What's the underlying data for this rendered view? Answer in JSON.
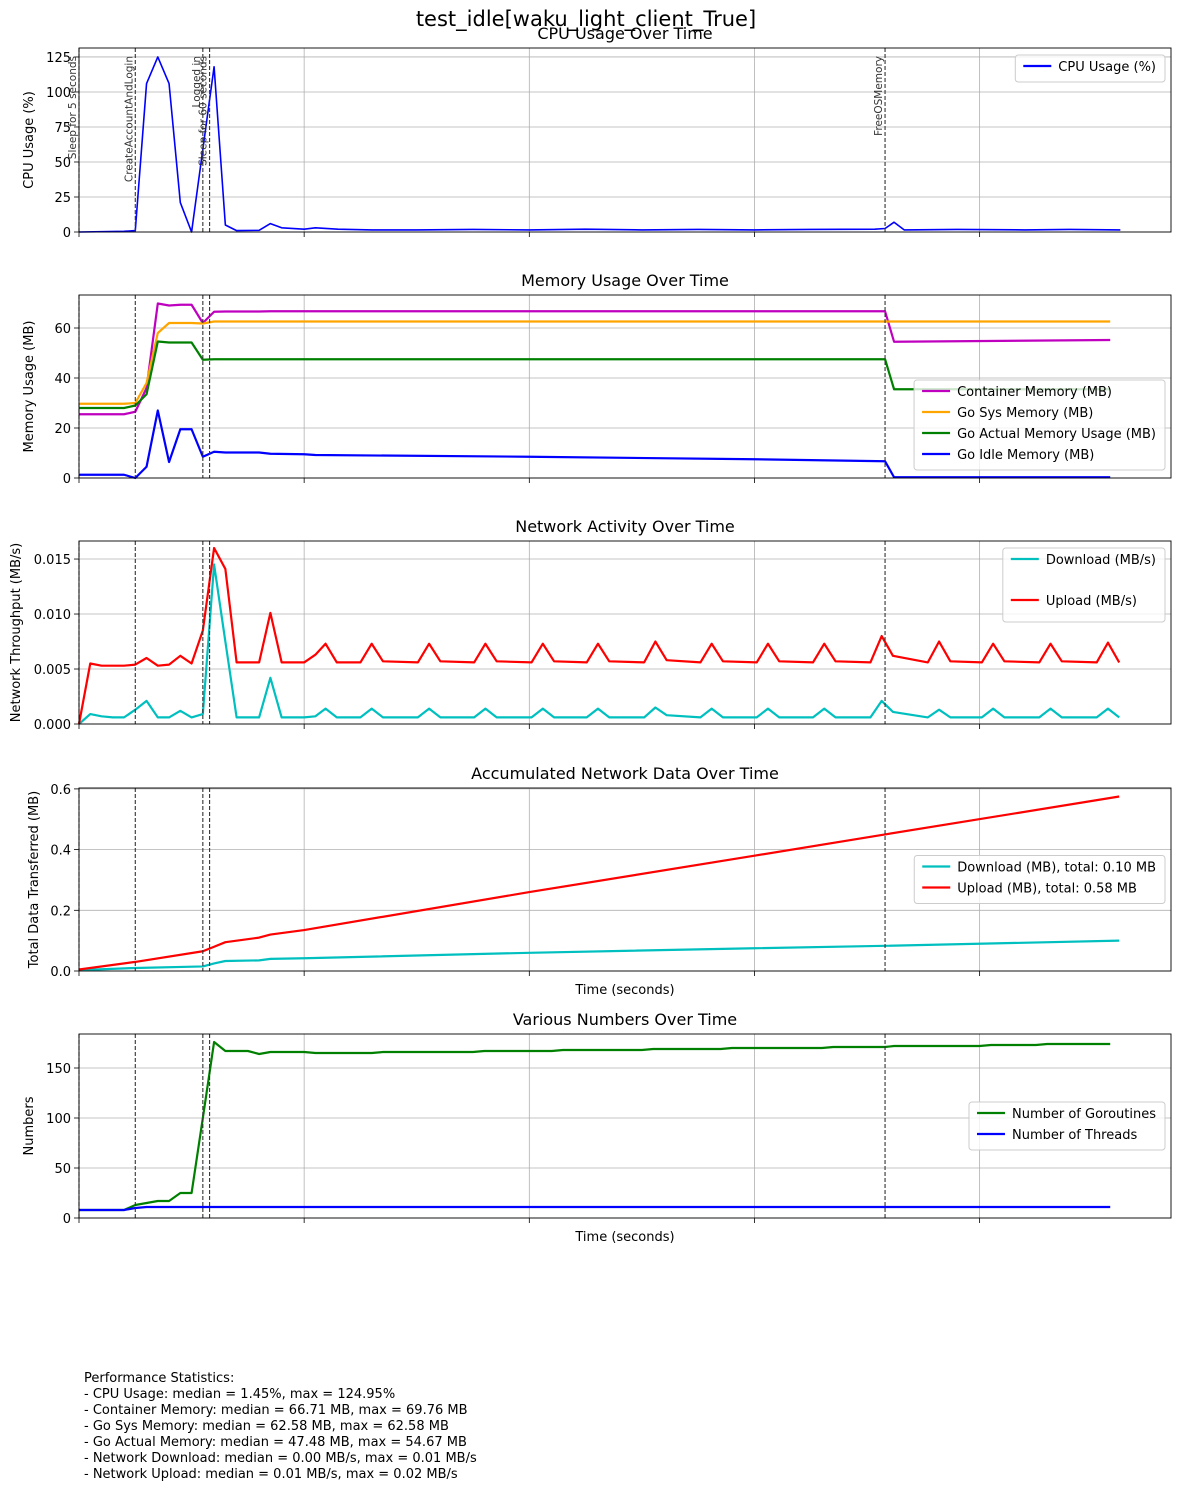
{
  "title": "test_idle[waku_light_client_True]",
  "events": [
    {
      "x": 0,
      "label": "Sleep for 5 seconds"
    },
    {
      "x": 5,
      "label": "CreateAccountAndLogin"
    },
    {
      "x": 11,
      "label": "Logged in"
    },
    {
      "x": 11.6,
      "label": "Sleep for 60 seconds"
    },
    {
      "x": 71.6,
      "label": "FreeOSMemory"
    }
  ],
  "chart_data": [
    {
      "type": "line",
      "title": "CPU Usage Over Time",
      "ylabel": "CPU Usage (%)",
      "xlim": [
        0,
        97
      ],
      "xticks": [
        0,
        20,
        40,
        60,
        80
      ],
      "ylim": [
        0,
        131.4
      ],
      "yticks": [
        0,
        25,
        50,
        75,
        100,
        125
      ],
      "grid": true,
      "legend": "upper right",
      "x": [
        0,
        4,
        5,
        6,
        7,
        8,
        9,
        10,
        12,
        13,
        14,
        16,
        17,
        18,
        20,
        21,
        23,
        26,
        30,
        35,
        40,
        45,
        50,
        55,
        60,
        65,
        70.7,
        71.6,
        72.4,
        73.3,
        78,
        84,
        88,
        92.5
      ],
      "series": [
        {
          "name": "CPU Usage (%)",
          "color": "#0000ff",
          "values": [
            0,
            0.5,
            1,
            106,
            125,
            106,
            21,
            0,
            118,
            5,
            1,
            1.2,
            6,
            3,
            2,
            3,
            2,
            1.5,
            1.5,
            1.8,
            1.5,
            2,
            1.5,
            1.8,
            1.5,
            1.8,
            2,
            2.5,
            7,
            1.5,
            1.8,
            1.5,
            1.8,
            1.5
          ]
        }
      ]
    },
    {
      "type": "line",
      "title": "Memory Usage Over Time",
      "ylabel": "Memory Usage (MB)",
      "xlim": [
        0,
        97
      ],
      "xticks": [
        0,
        20,
        40,
        60,
        80
      ],
      "ylim": [
        0,
        73.2
      ],
      "yticks": [
        0,
        20,
        40,
        60
      ],
      "grid": true,
      "legend": "lower right",
      "x": [
        0,
        4,
        5,
        6,
        7,
        8,
        9,
        10,
        11,
        12,
        13,
        16,
        17,
        20,
        21,
        40,
        60,
        71.6,
        72.4,
        91.6
      ],
      "series": [
        {
          "name": "Container Memory (MB)",
          "color": "#bf00bf",
          "values": [
            25.5,
            25.5,
            26.5,
            36,
            69.8,
            69,
            69.3,
            69.3,
            62,
            66.5,
            66.6,
            66.6,
            66.7,
            66.7,
            66.7,
            66.7,
            66.7,
            66.7,
            54.5,
            55.2
          ]
        },
        {
          "name": "Go Sys Memory (MB)",
          "color": "#ffa500",
          "values": [
            29.7,
            29.7,
            30,
            38,
            58,
            62,
            62,
            62,
            61.8,
            62.6,
            62.6,
            62.6,
            62.6,
            62.6,
            62.6,
            62.6,
            62.6,
            62.6,
            62.6,
            62.6
          ]
        },
        {
          "name": "Go Actual Memory Usage (MB)",
          "color": "#008000",
          "values": [
            28,
            28,
            29,
            33.5,
            54.6,
            54.2,
            54.2,
            54.2,
            47.3,
            47.5,
            47.5,
            47.5,
            47.5,
            47.5,
            47.5,
            47.5,
            47.5,
            47.5,
            35.5,
            35.5
          ]
        },
        {
          "name": "Go Idle Memory (MB)",
          "color": "#0000ff",
          "values": [
            1.3,
            1.3,
            0,
            4.5,
            27,
            6.4,
            19.5,
            19.5,
            8.5,
            10.5,
            10.2,
            10.2,
            9.7,
            9.5,
            9.2,
            8.5,
            7.5,
            6.7,
            0.3,
            0.3
          ]
        }
      ]
    },
    {
      "type": "line",
      "title": "Network Activity Over Time",
      "ylabel": "Network Throughput (MB/s)",
      "xlim": [
        0,
        97
      ],
      "xticks": [
        0,
        20,
        40,
        60,
        80
      ],
      "ylim": [
        0,
        0.01664
      ],
      "yticks": [
        {
          "value": 0,
          "label": "0.000"
        },
        {
          "value": 0.005,
          "label": "0.005"
        },
        {
          "value": 0.01,
          "label": "0.010"
        },
        {
          "value": 0.015,
          "label": "0.015"
        }
      ],
      "grid": true,
      "legend": "upper right",
      "x": [
        0,
        1,
        2,
        3,
        4,
        5,
        6,
        7,
        8,
        9,
        10,
        11,
        12,
        13,
        14,
        16,
        17,
        18,
        20,
        21,
        21.9,
        22.9,
        25,
        26,
        27,
        30.1,
        31.1,
        32.1,
        35.1,
        36.1,
        37.1,
        40.2,
        41.2,
        42.2,
        45.1,
        46.1,
        47.1,
        50.2,
        51.2,
        52.2,
        55.2,
        56.2,
        57.2,
        60.2,
        61.2,
        62.2,
        65.2,
        66.2,
        67.2,
        70.3,
        71.3,
        72.3,
        75.4,
        76.4,
        77.4,
        80.2,
        81.2,
        82.2,
        85.3,
        86.3,
        87.3,
        90.4,
        91.4,
        92.4
      ],
      "series": [
        {
          "name": "Download (MB/s)",
          "color": "#00bfbf",
          "values": [
            0,
            0.0009,
            0.0007,
            0.0006,
            0.0006,
            0.0013,
            0.0021,
            0.0006,
            0.0006,
            0.0012,
            0.0006,
            0.0009,
            0.0145,
            0.0075,
            0.0006,
            0.0006,
            0.0042,
            0.0006,
            0.0006,
            0.0007,
            0.0014,
            0.0006,
            0.0006,
            0.0014,
            0.0006,
            0.0006,
            0.0014,
            0.0006,
            0.0006,
            0.0014,
            0.0006,
            0.0006,
            0.0014,
            0.0006,
            0.0006,
            0.0014,
            0.0006,
            0.0006,
            0.0015,
            0.0008,
            0.0006,
            0.0014,
            0.0006,
            0.0006,
            0.0014,
            0.0006,
            0.0006,
            0.0014,
            0.0006,
            0.0006,
            0.0021,
            0.0011,
            0.0006,
            0.0013,
            0.0006,
            0.0006,
            0.0014,
            0.0006,
            0.0006,
            0.0014,
            0.0006,
            0.0006,
            0.0014,
            0.0006
          ]
        },
        {
          "name": "Upload (MB/s)",
          "color": "#ff0000",
          "values": [
            0,
            0.0055,
            0.0053,
            0.0053,
            0.0053,
            0.0054,
            0.006,
            0.0053,
            0.0054,
            0.0062,
            0.0055,
            0.0085,
            0.016,
            0.0141,
            0.0056,
            0.0056,
            0.0101,
            0.0056,
            0.0056,
            0.0063,
            0.0073,
            0.0056,
            0.0056,
            0.0073,
            0.0057,
            0.0056,
            0.0073,
            0.0057,
            0.0056,
            0.0073,
            0.0057,
            0.0056,
            0.0073,
            0.0057,
            0.0056,
            0.0073,
            0.0057,
            0.0056,
            0.0075,
            0.0058,
            0.0056,
            0.0073,
            0.0057,
            0.0056,
            0.0073,
            0.0057,
            0.0056,
            0.0073,
            0.0057,
            0.0056,
            0.008,
            0.0062,
            0.0056,
            0.0075,
            0.0057,
            0.0056,
            0.0073,
            0.0057,
            0.0056,
            0.0073,
            0.0057,
            0.0056,
            0.0074,
            0.0056
          ]
        }
      ]
    },
    {
      "type": "line",
      "title": "Accumulated Network Data Over Time",
      "ylabel": "Total Data Transferred (MB)",
      "xlabel": "Time (seconds)",
      "xlim": [
        0,
        97
      ],
      "xticks": [
        0,
        20,
        40,
        60,
        80
      ],
      "ylim": [
        0,
        0.603
      ],
      "yticks": [
        {
          "value": 0,
          "label": "0.0"
        },
        0.2,
        0.4,
        0.6
      ],
      "grid": true,
      "legend": "center right",
      "x": [
        0,
        5,
        11,
        12,
        13,
        16,
        17,
        20,
        40,
        60,
        71.6,
        92.4
      ],
      "series": [
        {
          "name": "Download (MB), total: 0.10 MB",
          "color": "#00bfbf",
          "values": [
            0.003,
            0.01,
            0.015,
            0.025,
            0.033,
            0.035,
            0.04,
            0.042,
            0.06,
            0.075,
            0.083,
            0.1
          ]
        },
        {
          "name": "Upload (MB), total: 0.58 MB",
          "color": "#ff0000",
          "values": [
            0.005,
            0.03,
            0.065,
            0.08,
            0.095,
            0.11,
            0.12,
            0.135,
            0.26,
            0.38,
            0.45,
            0.575
          ]
        }
      ]
    },
    {
      "type": "line",
      "title": "Various Numbers Over Time",
      "ylabel": "Numbers",
      "xlabel": "Time (seconds)",
      "xlim": [
        0,
        97
      ],
      "xticks": [
        0,
        20,
        40,
        60,
        80
      ],
      "ylim": [
        0,
        184
      ],
      "yticks": [
        0,
        50,
        100,
        150
      ],
      "grid": true,
      "legend": "center right",
      "x": [
        0,
        4,
        5,
        6,
        7,
        8,
        9,
        10,
        11,
        12,
        13,
        15,
        16,
        17,
        20,
        21,
        26,
        27,
        35,
        36,
        42,
        43,
        50,
        51,
        57,
        58,
        66,
        67,
        71.6,
        72.4,
        80,
        81,
        85,
        86,
        91.6
      ],
      "series": [
        {
          "name": "Number of Goroutines",
          "color": "#008000",
          "values": [
            8,
            8,
            13,
            15,
            17,
            17,
            25,
            25,
            100,
            176,
            167,
            167,
            164,
            166,
            166,
            165,
            165,
            166,
            166,
            167,
            167,
            168,
            168,
            169,
            169,
            170,
            170,
            171,
            171,
            172,
            172,
            173,
            173,
            174,
            174
          ]
        },
        {
          "name": "Number of Threads",
          "color": "#0000ff",
          "values": [
            8,
            8,
            10,
            11,
            11,
            11,
            11,
            11,
            11,
            11,
            11,
            11,
            11,
            11,
            11,
            11,
            11,
            11,
            11,
            11,
            11,
            11,
            11,
            11,
            11,
            11,
            11,
            11,
            11,
            11,
            11,
            11,
            11,
            11,
            11
          ]
        }
      ]
    }
  ],
  "stats": [
    "Performance Statistics:",
    "- CPU Usage: median = 1.45%, max = 124.95%",
    "- Container Memory: median = 66.71 MB, max = 69.76 MB",
    "- Go Sys Memory: median = 62.58 MB, max = 62.58 MB",
    "- Go Actual Memory: median = 47.48 MB, max = 54.67 MB",
    "- Network Download: median = 0.00 MB/s, max = 0.01 MB/s",
    "- Network Upload: median = 0.01 MB/s, max = 0.02 MB/s"
  ]
}
